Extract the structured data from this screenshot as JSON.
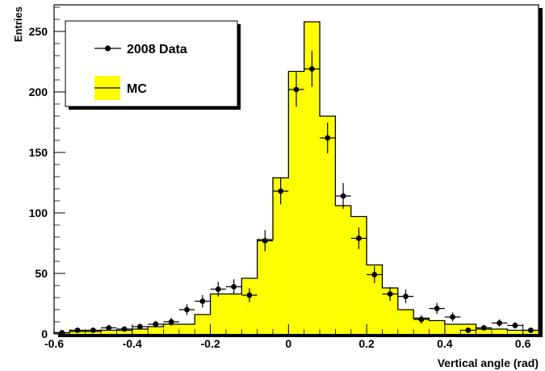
{
  "chart_data": {
    "type": "bar",
    "xlabel": "Vertical angle (rad)",
    "ylabel": "Entries",
    "xlim": [
      -0.6,
      0.64
    ],
    "ylim": [
      0,
      272
    ],
    "x_ticks": [
      -0.6,
      -0.4,
      -0.2,
      0,
      0.2,
      0.4,
      0.6
    ],
    "x_tick_labels": [
      "-0.6",
      "-0.4",
      "-0.2",
      "0",
      "0.2",
      "0.4",
      "0.6"
    ],
    "y_ticks": [
      0,
      50,
      100,
      150,
      200,
      250
    ],
    "y_tick_labels": [
      "0",
      "50",
      "100",
      "150",
      "200",
      "250"
    ],
    "grid": false,
    "legend_position": "top-left",
    "legend": [
      {
        "label": "2008 Data",
        "style": "marker-errorbar"
      },
      {
        "label": "MC",
        "style": "filled-histogram"
      }
    ],
    "series": [
      {
        "name": "MC",
        "kind": "histogram",
        "color": "#ffff00",
        "bin_edges": [
          -0.6,
          -0.56,
          -0.52,
          -0.48,
          -0.44,
          -0.4,
          -0.36,
          -0.32,
          -0.28,
          -0.24,
          -0.2,
          -0.16,
          -0.12,
          -0.08,
          -0.04,
          0.0,
          0.04,
          0.08,
          0.12,
          0.16,
          0.2,
          0.24,
          0.28,
          0.32,
          0.36,
          0.4,
          0.44,
          0.48,
          0.52,
          0.56,
          0.6,
          0.64
        ],
        "values": [
          1,
          2,
          2,
          3,
          3,
          4,
          6,
          8,
          8,
          16,
          33,
          33,
          46,
          78,
          129,
          217,
          258,
          180,
          106,
          97,
          57,
          38,
          20,
          13,
          11,
          8,
          8,
          4,
          4,
          3,
          3
        ]
      },
      {
        "name": "2008 Data",
        "kind": "points",
        "color": "#000000",
        "x": [
          -0.58,
          -0.54,
          -0.5,
          -0.46,
          -0.42,
          -0.38,
          -0.34,
          -0.3,
          -0.26,
          -0.22,
          -0.18,
          -0.14,
          -0.1,
          -0.06,
          -0.02,
          0.02,
          0.06,
          0.1,
          0.14,
          0.18,
          0.22,
          0.26,
          0.3,
          0.34,
          0.38,
          0.42,
          0.46,
          0.5,
          0.54,
          0.58,
          0.62
        ],
        "y": [
          1,
          3,
          3,
          5,
          4,
          6,
          8,
          10,
          20,
          27,
          37,
          39,
          32,
          77,
          118,
          202,
          219,
          162,
          114,
          79,
          49,
          33,
          31,
          12,
          21,
          14,
          3,
          5,
          9,
          7,
          3
        ],
        "yerr": [
          1,
          1.7,
          1.7,
          2.2,
          2,
          2.4,
          2.8,
          3.2,
          4.5,
          5.2,
          6.1,
          6.2,
          5.7,
          8.8,
          10.9,
          14.2,
          14.8,
          12.7,
          10.7,
          8.9,
          7,
          5.7,
          5.6,
          3.5,
          4.6,
          3.7,
          1.7,
          2.2,
          3,
          2.6,
          1.7
        ]
      }
    ]
  }
}
